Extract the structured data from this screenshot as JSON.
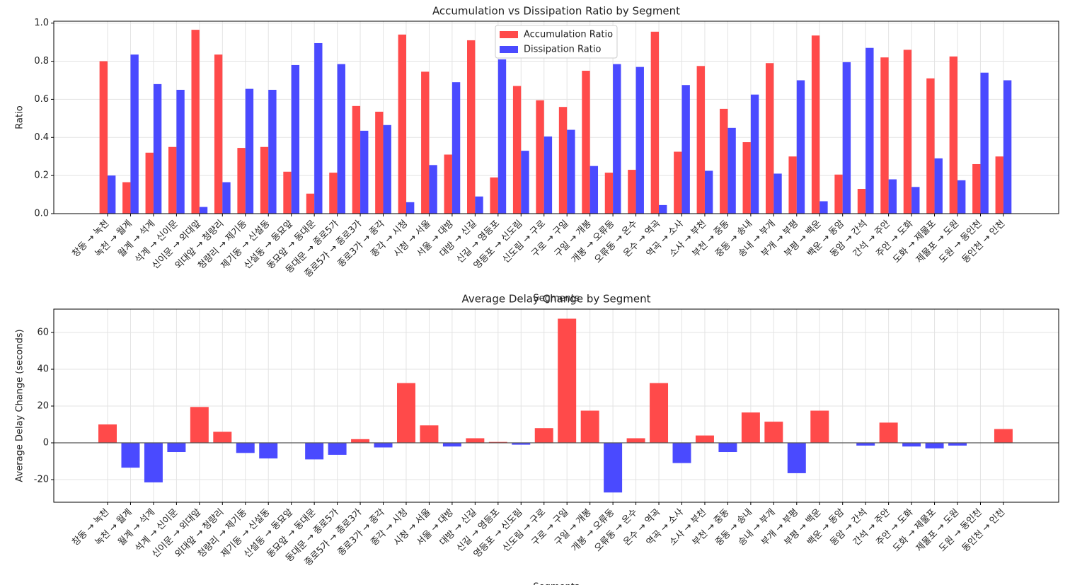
{
  "chart_data": [
    {
      "type": "grouped_bar",
      "title": "Accumulation vs Dissipation Ratio by Segment",
      "x_label": "Segments",
      "y_label": "Ratio",
      "categories": [
        "창동 → 녹천",
        "녹천 → 월계",
        "월계 → 석계",
        "석계 → 신이문",
        "신이문 → 외대앞",
        "외대앞 → 청량리",
        "청량리 → 제기동",
        "제기동 → 신설동",
        "신설동 → 동묘앞",
        "동묘앞 → 동대문",
        "동대문 → 종로5가",
        "종로5가 → 종로3가",
        "종로3가 → 종각",
        "종각 → 시청",
        "시청 → 서울",
        "서울 → 대방",
        "대방 → 신길",
        "신길 → 영등포",
        "영등포 → 신도림",
        "신도림 → 구로",
        "구로 → 구일",
        "구일 → 개봉",
        "개봉 → 오류동",
        "오류동 → 온수",
        "온수 → 역곡",
        "역곡 → 소사",
        "소사 → 부천",
        "부천 → 중동",
        "중동 → 송내",
        "송내 → 부개",
        "부개 → 부평",
        "부평 → 백운",
        "백운 → 동암",
        "동암 → 간석",
        "간석 → 주안",
        "주안 → 도화",
        "도화 → 제물포",
        "제물포 → 도원",
        "도원 → 동인천",
        "동인천 → 인천"
      ],
      "series": [
        {
          "name": "Accumulation Ratio",
          "color": "#ff4a4a",
          "values": [
            0.8,
            0.165,
            0.32,
            0.35,
            0.965,
            0.835,
            0.345,
            0.35,
            0.22,
            0.105,
            0.215,
            0.565,
            0.535,
            0.94,
            0.745,
            0.31,
            0.91,
            0.19,
            0.67,
            0.595,
            0.56,
            0.75,
            0.215,
            0.23,
            0.955,
            0.325,
            0.775,
            0.55,
            0.375,
            0.79,
            0.3,
            0.935,
            0.205,
            0.13,
            0.82,
            0.86,
            0.71,
            0.825,
            0.26,
            0.3
          ]
        },
        {
          "name": "Dissipation Ratio",
          "color": "#4a4aff",
          "values": [
            0.2,
            0.835,
            0.68,
            0.65,
            0.035,
            0.165,
            0.655,
            0.65,
            0.78,
            0.895,
            0.785,
            0.435,
            0.465,
            0.06,
            0.255,
            0.69,
            0.09,
            0.81,
            0.33,
            0.405,
            0.44,
            0.25,
            0.785,
            0.77,
            0.045,
            0.675,
            0.225,
            0.45,
            0.625,
            0.21,
            0.7,
            0.065,
            0.795,
            0.87,
            0.18,
            0.14,
            0.29,
            0.175,
            0.74,
            0.7
          ]
        }
      ],
      "ylim": [
        0,
        1.01
      ],
      "yticks": [
        {
          "value": 0,
          "label": "0.0"
        },
        {
          "value": 0.2,
          "label": "0.2"
        },
        {
          "value": 0.4,
          "label": "0.4"
        },
        {
          "value": 0.6,
          "label": "0.6"
        },
        {
          "value": 0.8,
          "label": "0.8"
        },
        {
          "value": 1,
          "label": "1.0"
        }
      ],
      "grid": true,
      "legend": "upper center"
    },
    {
      "type": "signed_bar",
      "title": "Average Delay Change by Segment",
      "x_label": "Segments",
      "y_label": "Average Delay Change (seconds)",
      "categories": [
        "창동 → 녹천",
        "녹천 → 월계",
        "월계 → 석계",
        "석계 → 신이문",
        "신이문 → 외대앞",
        "외대앞 → 청량리",
        "청량리 → 제기동",
        "제기동 → 신설동",
        "신설동 → 동묘앞",
        "동묘앞 → 동대문",
        "동대문 → 종로5가",
        "종로5가 → 종로3가",
        "종로3가 → 종각",
        "종각 → 시청",
        "시청 → 서울",
        "서울 → 대방",
        "대방 → 신길",
        "신길 → 영등포",
        "영등포 → 신도림",
        "신도림 → 구로",
        "구로 → 구일",
        "구일 → 개봉",
        "개봉 → 오류동",
        "오류동 → 온수",
        "온수 → 역곡",
        "역곡 → 소사",
        "소사 → 부천",
        "부천 → 중동",
        "중동 → 송내",
        "송내 → 부개",
        "부개 → 부평",
        "부평 → 백운",
        "백운 → 동암",
        "동암 → 간석",
        "간석 → 주안",
        "주안 → 도화",
        "도화 → 제물포",
        "제물포 → 도원",
        "도원 → 동인천",
        "동인천 → 인천"
      ],
      "values": [
        10,
        -13.5,
        -21.5,
        -5,
        19.5,
        6,
        -5.5,
        -8.5,
        0,
        -9,
        -6.5,
        2,
        -2.5,
        32.5,
        9.5,
        -2,
        2.5,
        0.5,
        -1,
        8,
        67.5,
        17.5,
        -27,
        2.5,
        32.5,
        -11,
        4,
        -5,
        16.5,
        11.5,
        -16.5,
        17.5,
        0,
        -1.5,
        11,
        -2,
        -3,
        -1.5,
        0,
        7.5
      ],
      "positive_color": "#ff4a4a",
      "negative_color": "#4a4aff",
      "ylim": [
        -32.3,
        72.7
      ],
      "yticks": [
        -20,
        0,
        20,
        40,
        60
      ],
      "grid": true
    }
  ]
}
